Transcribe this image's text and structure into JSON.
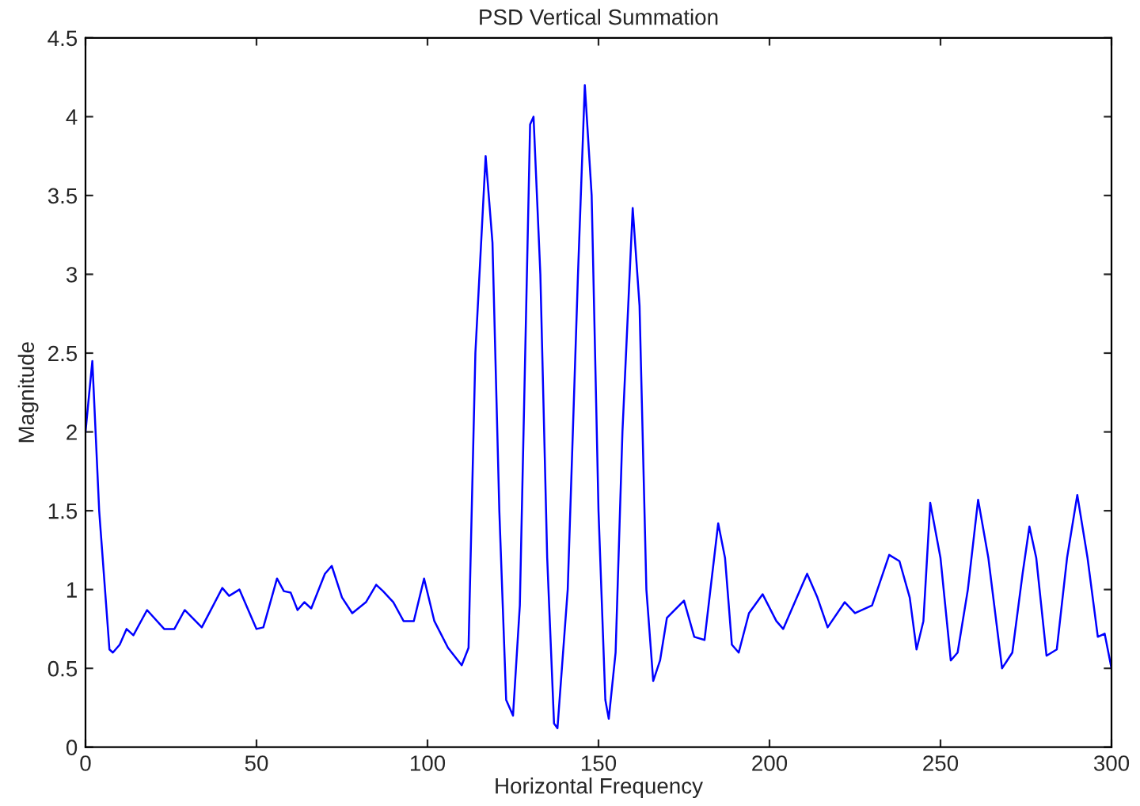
{
  "chart_data": {
    "type": "line",
    "title": "PSD Vertical Summation",
    "xlabel": "Horizontal Frequency",
    "ylabel": "Magnitude",
    "xlim": [
      0,
      300
    ],
    "ylim": [
      0,
      4.5
    ],
    "xticks": [
      0,
      50,
      100,
      150,
      200,
      250,
      300
    ],
    "yticks": [
      0,
      0.5,
      1,
      1.5,
      2,
      2.5,
      3,
      3.5,
      4,
      4.5
    ],
    "grid": false,
    "legend": false,
    "series": [
      {
        "color": "#0000ff",
        "x": [
          0,
          2,
          4,
          7,
          8,
          10,
          12,
          14,
          18,
          23,
          26,
          29,
          34,
          40,
          42,
          45,
          50,
          52,
          56,
          58,
          60,
          62,
          64,
          66,
          70,
          72,
          75,
          78,
          82,
          85,
          87,
          90,
          93,
          96,
          99,
          102,
          106,
          110,
          112,
          114,
          117,
          119,
          121,
          123,
          125,
          127,
          130,
          131,
          133,
          135,
          137,
          138,
          141,
          144,
          146,
          148,
          150,
          152,
          153,
          155,
          157,
          160,
          162,
          164,
          166,
          168,
          170,
          175,
          178,
          181,
          185,
          187,
          189,
          191,
          194,
          198,
          202,
          204,
          206,
          211,
          214,
          217,
          222,
          225,
          230,
          235,
          238,
          241,
          243,
          245,
          247,
          250,
          253,
          255,
          258,
          261,
          264,
          268,
          271,
          274,
          276,
          278,
          281,
          284,
          287,
          290,
          293,
          296,
          298,
          300
        ],
        "values": [
          2.0,
          2.45,
          1.5,
          0.62,
          0.6,
          0.65,
          0.75,
          0.71,
          0.87,
          0.75,
          0.75,
          0.87,
          0.76,
          1.01,
          0.96,
          1.0,
          0.75,
          0.76,
          1.07,
          0.99,
          0.98,
          0.87,
          0.92,
          0.88,
          1.1,
          1.15,
          0.95,
          0.85,
          0.92,
          1.03,
          0.99,
          0.92,
          0.8,
          0.8,
          1.07,
          0.8,
          0.63,
          0.52,
          0.63,
          2.5,
          3.75,
          3.2,
          1.5,
          0.3,
          0.2,
          0.9,
          3.95,
          4.0,
          3.0,
          1.2,
          0.15,
          0.12,
          1.0,
          3.0,
          4.2,
          3.5,
          1.5,
          0.3,
          0.18,
          0.6,
          2.0,
          3.42,
          2.8,
          1.0,
          0.42,
          0.55,
          0.82,
          0.93,
          0.7,
          0.68,
          1.42,
          1.2,
          0.65,
          0.6,
          0.85,
          0.97,
          0.8,
          0.75,
          0.85,
          1.1,
          0.95,
          0.76,
          0.92,
          0.85,
          0.9,
          1.22,
          1.18,
          0.95,
          0.62,
          0.8,
          1.55,
          1.2,
          0.55,
          0.6,
          1.0,
          1.57,
          1.2,
          0.5,
          0.6,
          1.1,
          1.4,
          1.2,
          0.58,
          0.62,
          1.2,
          1.6,
          1.2,
          0.7,
          0.72,
          0.5
        ]
      }
    ]
  }
}
